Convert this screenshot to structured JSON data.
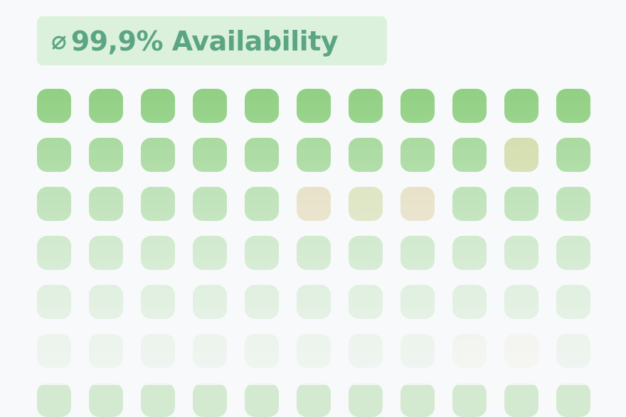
{
  "header": {
    "icon": "average-icon",
    "icon_glyph": "⌀",
    "label": "99,9% Availability"
  },
  "colors": {
    "ok": "#8ecf80",
    "degraded": "#c8d494",
    "warning": "#dacd9f",
    "accent": "#5ba585",
    "badge_bg": "#dcf1dc"
  },
  "grid": {
    "rows": [
      [
        "ok",
        "ok",
        "ok",
        "ok",
        "ok",
        "ok",
        "ok",
        "ok",
        "ok",
        "ok",
        "ok"
      ],
      [
        "ok",
        "ok",
        "ok",
        "ok",
        "ok",
        "ok",
        "ok",
        "ok",
        "ok",
        "degraded",
        "ok"
      ],
      [
        "ok",
        "ok",
        "ok",
        "ok",
        "ok",
        "warning",
        "degraded",
        "warning",
        "ok",
        "ok",
        "ok"
      ],
      [
        "ok",
        "ok",
        "ok",
        "ok",
        "ok",
        "ok",
        "ok",
        "ok",
        "ok",
        "ok",
        "ok"
      ],
      [
        "ok",
        "ok",
        "ok",
        "ok",
        "ok",
        "ok",
        "ok",
        "ok",
        "ok",
        "ok",
        "ok"
      ],
      [
        "ok",
        "ok",
        "ok",
        "ok",
        "ok",
        "ok",
        "ok",
        "ok",
        "degraded",
        "warning",
        "ok"
      ],
      [
        "ok",
        "ok",
        "ok",
        "ok",
        "ok",
        "ok",
        "ok",
        "ok",
        "ok",
        "ok",
        "ok"
      ]
    ]
  }
}
